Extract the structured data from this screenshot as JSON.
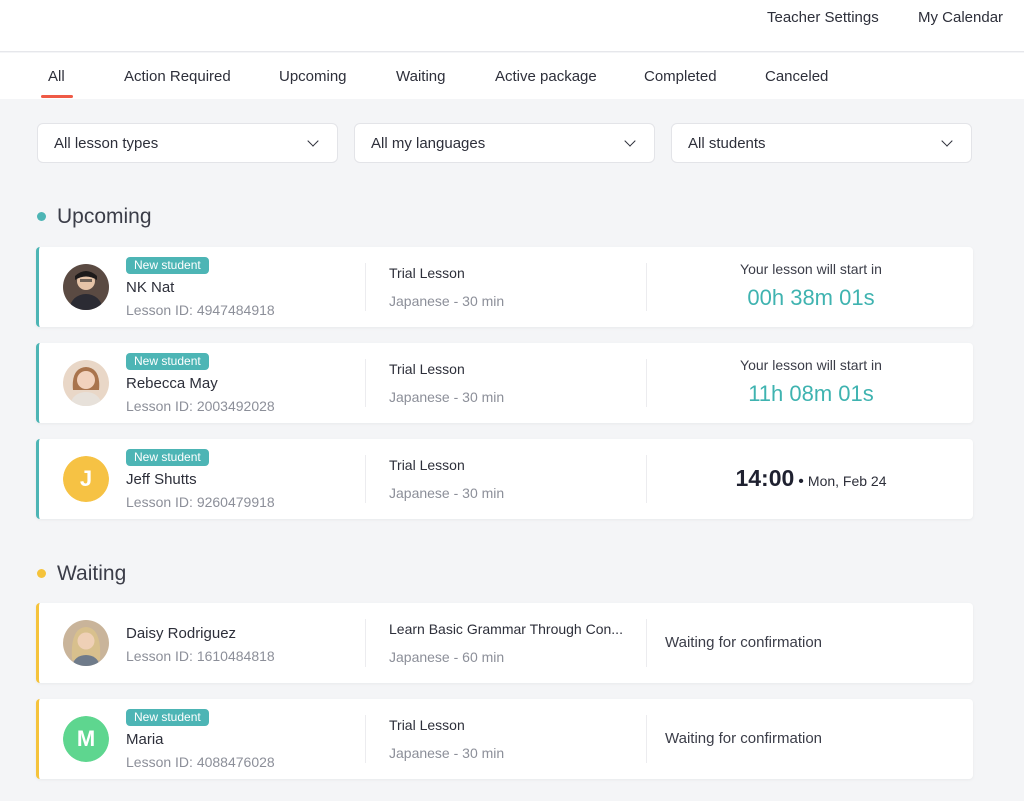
{
  "header": {
    "links": [
      "Teacher Settings",
      "My Calendar"
    ]
  },
  "tabs": [
    "All",
    "Action Required",
    "Upcoming",
    "Waiting",
    "Active package",
    "Completed",
    "Canceled"
  ],
  "active_tab": "All",
  "filters": [
    "All lesson types",
    "All my languages",
    "All students"
  ],
  "colors": {
    "accent_teal": "#4db5b5",
    "accent_yellow": "#f5c33b",
    "tab_underline": "#ef5a46",
    "countdown": "#3fb3b0"
  },
  "sections": {
    "upcoming": {
      "title": "Upcoming",
      "lessons": [
        {
          "badge": "New student",
          "name": "NK Nat",
          "lesson_id": "Lesson ID: 4947484918",
          "lesson_type": "Trial Lesson",
          "meta": "Japanese - 30 min",
          "start_label": "Your lesson will start in",
          "countdown": "00h 38m 01s"
        },
        {
          "badge": "New student",
          "name": "Rebecca May",
          "lesson_id": "Lesson ID: 2003492028",
          "lesson_type": "Trial Lesson",
          "meta": "Japanese - 30 min",
          "start_label": "Your lesson will start in",
          "countdown": "11h 08m 01s"
        },
        {
          "badge": "New student",
          "name": "Jeff Shutts",
          "avatar_letter": "J",
          "avatar_color": "#f6c244",
          "lesson_id": "Lesson ID: 9260479918",
          "lesson_type": "Trial Lesson",
          "meta": "Japanese - 30 min",
          "time": "14:00",
          "date": "Mon, Feb 24"
        }
      ]
    },
    "waiting": {
      "title": "Waiting",
      "lessons": [
        {
          "name": "Daisy Rodriguez",
          "lesson_id": "Lesson ID: 1610484818",
          "lesson_type": "Learn Basic Grammar Through Con...",
          "meta": "Japanese - 60 min",
          "status": "Waiting for confirmation"
        },
        {
          "badge": "New student",
          "name": "Maria",
          "avatar_letter": "M",
          "avatar_color": "#5ed68f",
          "lesson_id": "Lesson ID: 4088476028",
          "lesson_type": "Trial Lesson",
          "meta": "Japanese - 30 min",
          "status": "Waiting for confirmation"
        }
      ]
    }
  }
}
